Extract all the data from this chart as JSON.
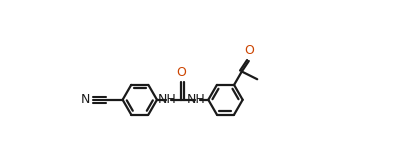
{
  "bg_color": "#ffffff",
  "line_color": "#1a1a1a",
  "o_color": "#cc4400",
  "n_color": "#1a1a1a",
  "bond_lw": 1.6,
  "figsize": [
    4.15,
    1.5
  ],
  "dpi": 100,
  "xlim": [
    0.0,
    8.3
  ],
  "ylim": [
    -1.5,
    3.0
  ]
}
